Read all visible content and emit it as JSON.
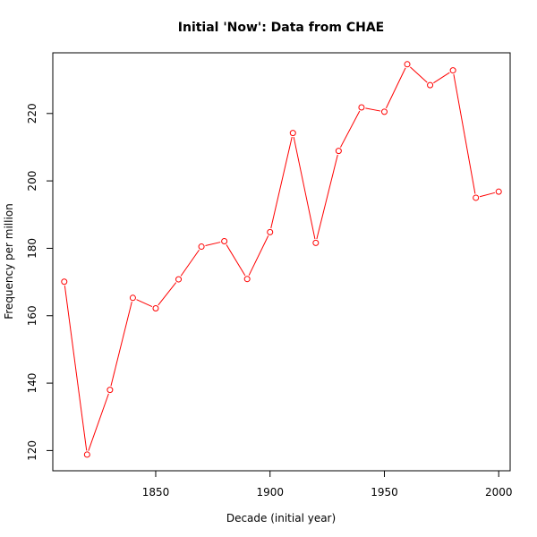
{
  "chart_data": {
    "type": "line",
    "title": "Initial 'Now': Data from CHAE",
    "xlabel": "Decade (initial year)",
    "ylabel": "Frequency per million",
    "xlim": [
      1805,
      2005
    ],
    "ylim": [
      114,
      238
    ],
    "x_ticks": [
      1850,
      1900,
      1950,
      2000
    ],
    "y_ticks": [
      120,
      140,
      160,
      180,
      200,
      220
    ],
    "grid": false,
    "series": [
      {
        "color": "#ff0000",
        "marker": "open-circle",
        "x": [
          1810,
          1820,
          1830,
          1840,
          1850,
          1860,
          1870,
          1880,
          1890,
          1900,
          1910,
          1920,
          1930,
          1940,
          1950,
          1960,
          1970,
          1980,
          1990,
          2000
        ],
        "y": [
          170.1,
          118.8,
          138.0,
          165.3,
          162.2,
          170.8,
          180.5,
          182.1,
          170.9,
          184.8,
          214.2,
          181.6,
          208.9,
          221.8,
          220.5,
          234.6,
          228.4,
          232.8,
          195.0,
          196.8
        ]
      }
    ]
  }
}
